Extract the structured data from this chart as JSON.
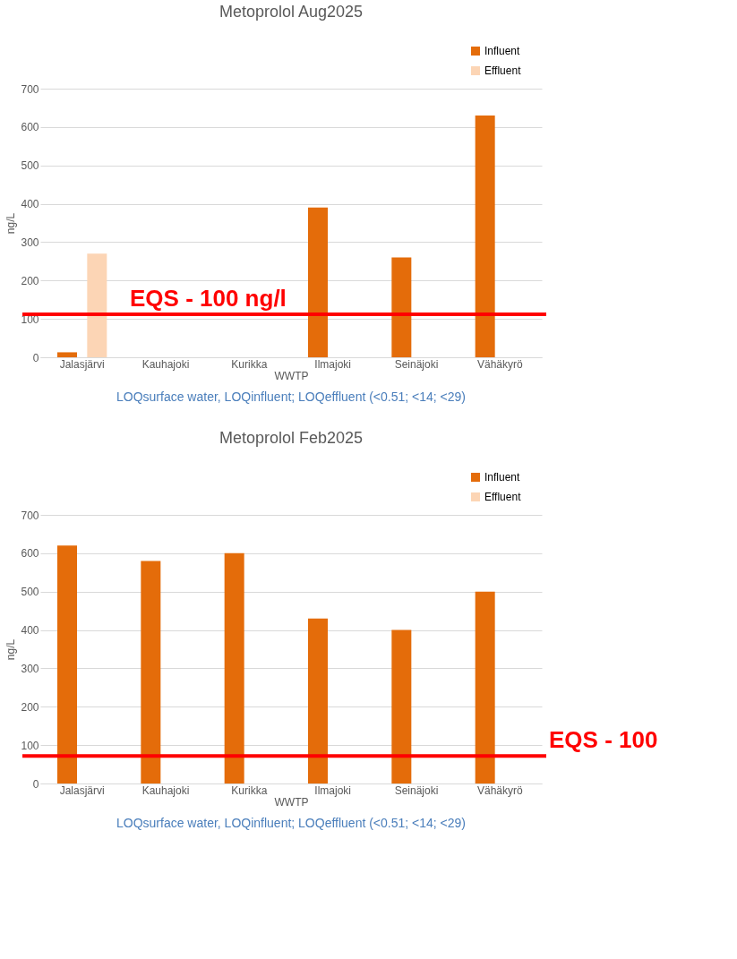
{
  "chart_data": [
    {
      "type": "bar",
      "title": "Metoprolol Aug2025",
      "xlabel": "WWTP",
      "ylabel": "ng/L",
      "categories": [
        "Jalasjärvi",
        "Kauhajoki",
        "Kurikka",
        "Ilmajoki",
        "Seinäjoki",
        "Vähäkyrö"
      ],
      "series": [
        {
          "name": "Influent",
          "color": "#e46c0a",
          "values": [
            13,
            null,
            null,
            390,
            260,
            630
          ]
        },
        {
          "name": "Effluent",
          "color": "#fcd5b5",
          "values": [
            270,
            null,
            null,
            null,
            null,
            null
          ]
        }
      ],
      "ylim": [
        0,
        700
      ],
      "yticks": [
        0,
        100,
        200,
        300,
        400,
        500,
        600,
        700
      ],
      "grid": "y",
      "legend": "top right",
      "ref_lines": [
        {
          "axis": "y",
          "value": 112,
          "label": "EQS - 100 ng/l",
          "color": "#ff0000"
        }
      ],
      "annotations": [
        "LOQsurface water,  LOQinfluent; LOQeffluent (<0.51; <14; <29)"
      ]
    },
    {
      "type": "bar",
      "title": "Metoprolol Feb2025",
      "xlabel": "WWTP",
      "ylabel": "ng/L",
      "categories": [
        "Jalasjärvi",
        "Kauhajoki",
        "Kurikka",
        "Ilmajoki",
        "Seinäjoki",
        "Vähäkyrö"
      ],
      "series": [
        {
          "name": "Influent",
          "color": "#e46c0a",
          "values": [
            620,
            580,
            600,
            430,
            400,
            500
          ]
        },
        {
          "name": "Effluent",
          "color": "#fcd5b5",
          "values": [
            null,
            null,
            null,
            null,
            null,
            null
          ]
        }
      ],
      "ylim": [
        0,
        700
      ],
      "yticks": [
        0,
        100,
        200,
        300,
        400,
        500,
        600,
        700
      ],
      "grid": "y",
      "legend": "top right",
      "ref_lines": [
        {
          "axis": "y",
          "value": 72,
          "label": "EQS - 100",
          "color": "#ff0000"
        }
      ],
      "annotations": [
        "LOQsurface water,  LOQinfluent; LOQeffluent (<0.51; <14; <29)"
      ]
    }
  ]
}
